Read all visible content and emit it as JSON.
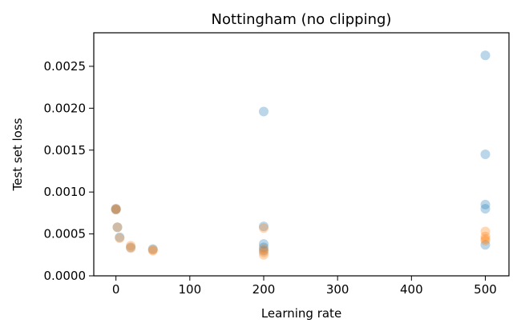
{
  "chart_data": {
    "type": "scatter",
    "title": "Nottingham (no clipping)",
    "xlabel": "Learning rate",
    "ylabel": "Test set loss",
    "xlim": [
      -30,
      532
    ],
    "ylim": [
      0,
      0.0029
    ],
    "xticks": [
      0,
      100,
      200,
      300,
      400,
      500
    ],
    "xtick_labels": [
      "0",
      "100",
      "200",
      "300",
      "400",
      "500"
    ],
    "yticks": [
      0,
      0.0005,
      0.001,
      0.0015,
      0.002,
      0.0025
    ],
    "ytick_labels": [
      "0.0000",
      "0.0005",
      "0.0010",
      "0.0015",
      "0.0020",
      "0.0025"
    ],
    "grid": false,
    "series": [
      {
        "color": "#1f77b4",
        "opacity": 0.3,
        "points": [
          {
            "x": 0,
            "y": 0.0008
          },
          {
            "x": 0,
            "y": 0.00079
          },
          {
            "x": 2,
            "y": 0.00058
          },
          {
            "x": 5,
            "y": 0.00046
          },
          {
            "x": 20,
            "y": 0.00034
          },
          {
            "x": 50,
            "y": 0.00032
          },
          {
            "x": 200,
            "y": 0.00196
          },
          {
            "x": 200,
            "y": 0.00059
          },
          {
            "x": 200,
            "y": 0.00038
          },
          {
            "x": 200,
            "y": 0.00034
          },
          {
            "x": 200,
            "y": 0.0003
          },
          {
            "x": 500,
            "y": 0.00263
          },
          {
            "x": 500,
            "y": 0.00145
          },
          {
            "x": 500,
            "y": 0.00085
          },
          {
            "x": 500,
            "y": 0.0008
          },
          {
            "x": 500,
            "y": 0.00037
          }
        ]
      },
      {
        "color": "#ff7f0e",
        "opacity": 0.3,
        "points": [
          {
            "x": 0,
            "y": 0.0008
          },
          {
            "x": 0,
            "y": 0.00079
          },
          {
            "x": 2,
            "y": 0.00058
          },
          {
            "x": 5,
            "y": 0.00045
          },
          {
            "x": 20,
            "y": 0.00036
          },
          {
            "x": 20,
            "y": 0.00033
          },
          {
            "x": 50,
            "y": 0.00031
          },
          {
            "x": 50,
            "y": 0.0003
          },
          {
            "x": 200,
            "y": 0.00057
          },
          {
            "x": 200,
            "y": 0.00032
          },
          {
            "x": 200,
            "y": 0.00028
          },
          {
            "x": 200,
            "y": 0.00025
          },
          {
            "x": 500,
            "y": 0.00053
          },
          {
            "x": 500,
            "y": 0.00047
          },
          {
            "x": 500,
            "y": 0.00044
          },
          {
            "x": 500,
            "y": 0.00042
          }
        ]
      }
    ]
  }
}
